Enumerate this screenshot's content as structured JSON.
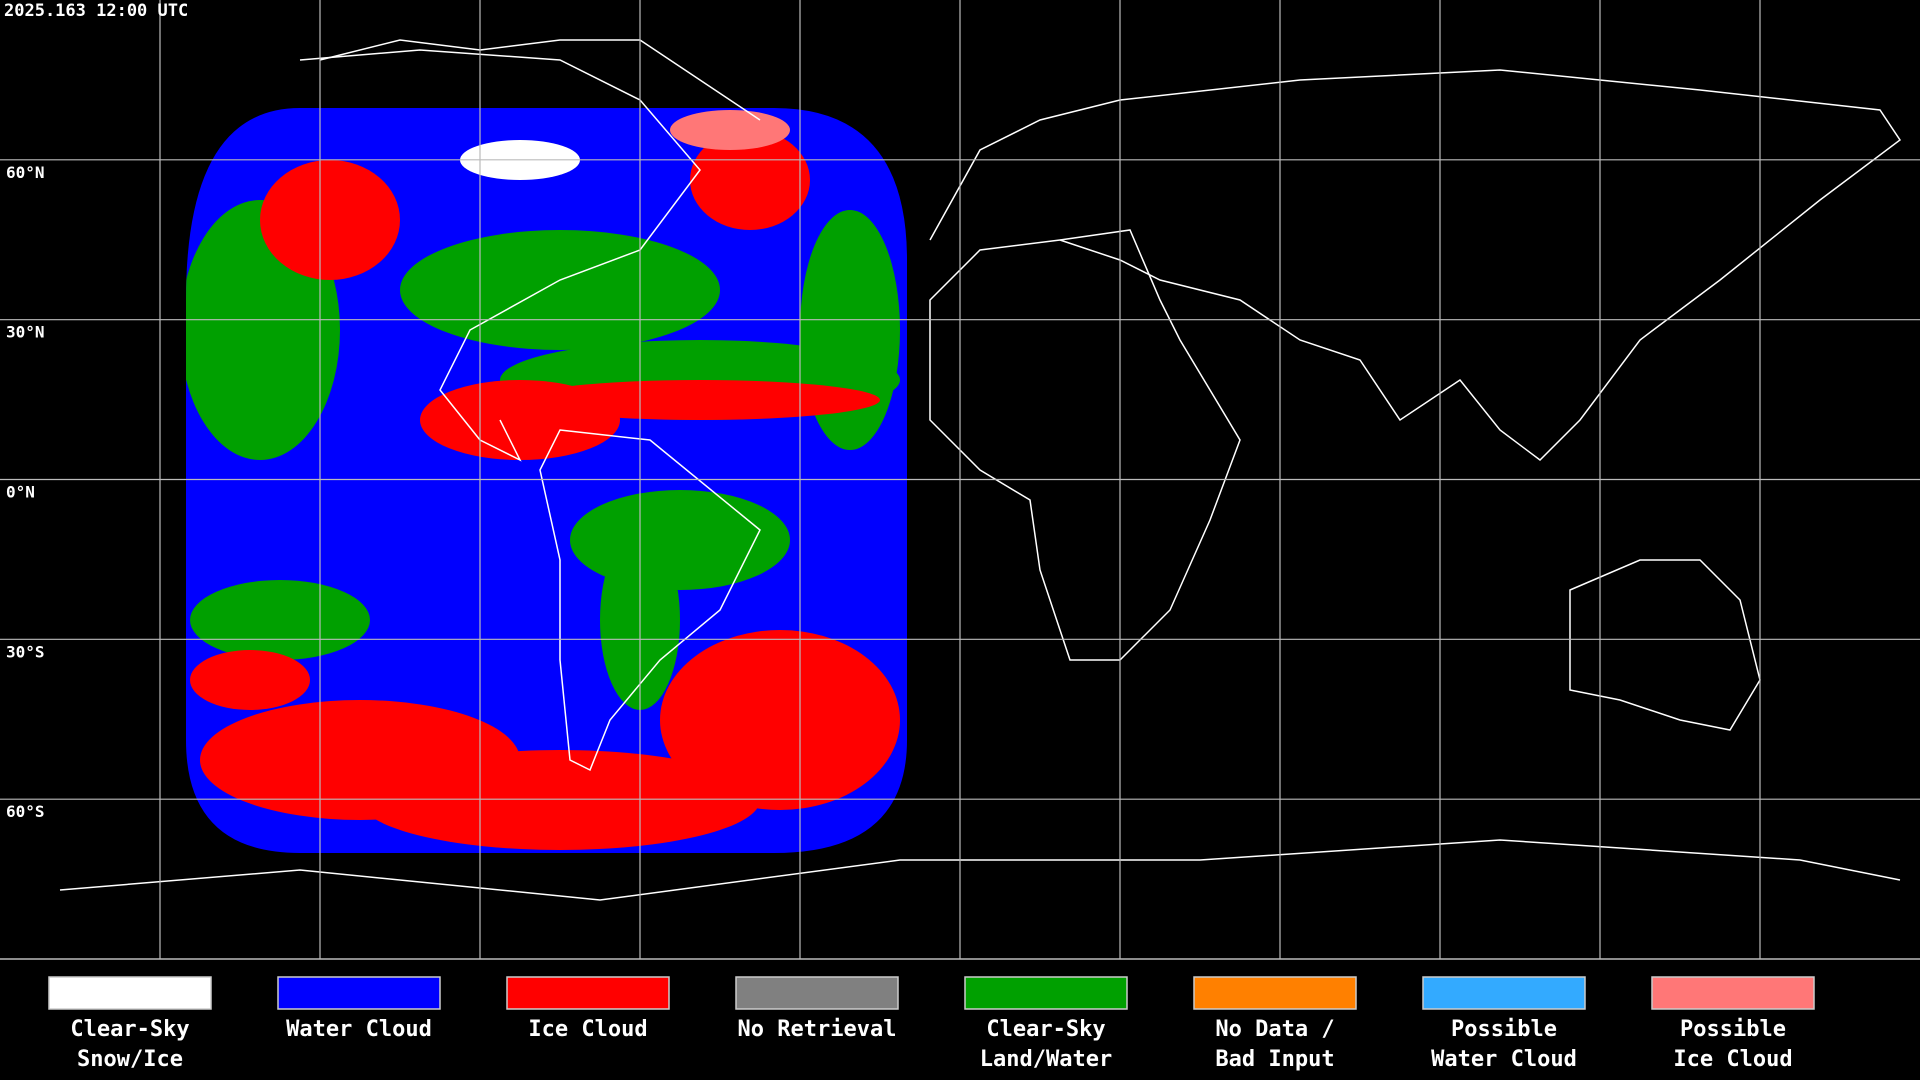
{
  "header": {
    "timestamp": "2025.163 12:00 UTC"
  },
  "latitude_labels": [
    "60°N",
    "30°N",
    "0°N",
    "30°S",
    "60°S"
  ],
  "legend": [
    {
      "lines": [
        "Clear-Sky",
        "Snow/Ice"
      ],
      "color": "#ffffff"
    },
    {
      "lines": [
        "Water Cloud"
      ],
      "color": "#0000ff"
    },
    {
      "lines": [
        "Ice Cloud"
      ],
      "color": "#ff0000"
    },
    {
      "lines": [
        "No Retrieval"
      ],
      "color": "#808080"
    },
    {
      "lines": [
        "Clear-Sky",
        "Land/Water"
      ],
      "color": "#00a000"
    },
    {
      "lines": [
        "No Data /",
        "Bad Input"
      ],
      "color": "#ff8000"
    },
    {
      "lines": [
        "Possible",
        "Water Cloud"
      ],
      "color": "#33aaff"
    },
    {
      "lines": [
        "Possible",
        "Ice Cloud"
      ],
      "color": "#ff7777"
    }
  ]
}
